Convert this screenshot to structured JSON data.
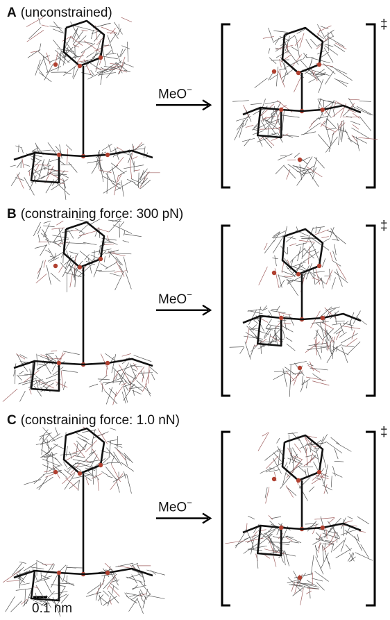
{
  "panels": [
    {
      "letter": "A",
      "caption": "(unconstrained)",
      "reagent": "MeO",
      "charge": "−",
      "ts_mark": "‡"
    },
    {
      "letter": "B",
      "caption": "(constraining force: 300 pN)",
      "reagent": "MeO",
      "charge": "−",
      "ts_mark": "‡"
    },
    {
      "letter": "C",
      "caption": "(constraining force: 1.0 nN)",
      "reagent": "MeO",
      "charge": "−",
      "ts_mark": "‡"
    }
  ],
  "scale_bar": "0.1 nm"
}
